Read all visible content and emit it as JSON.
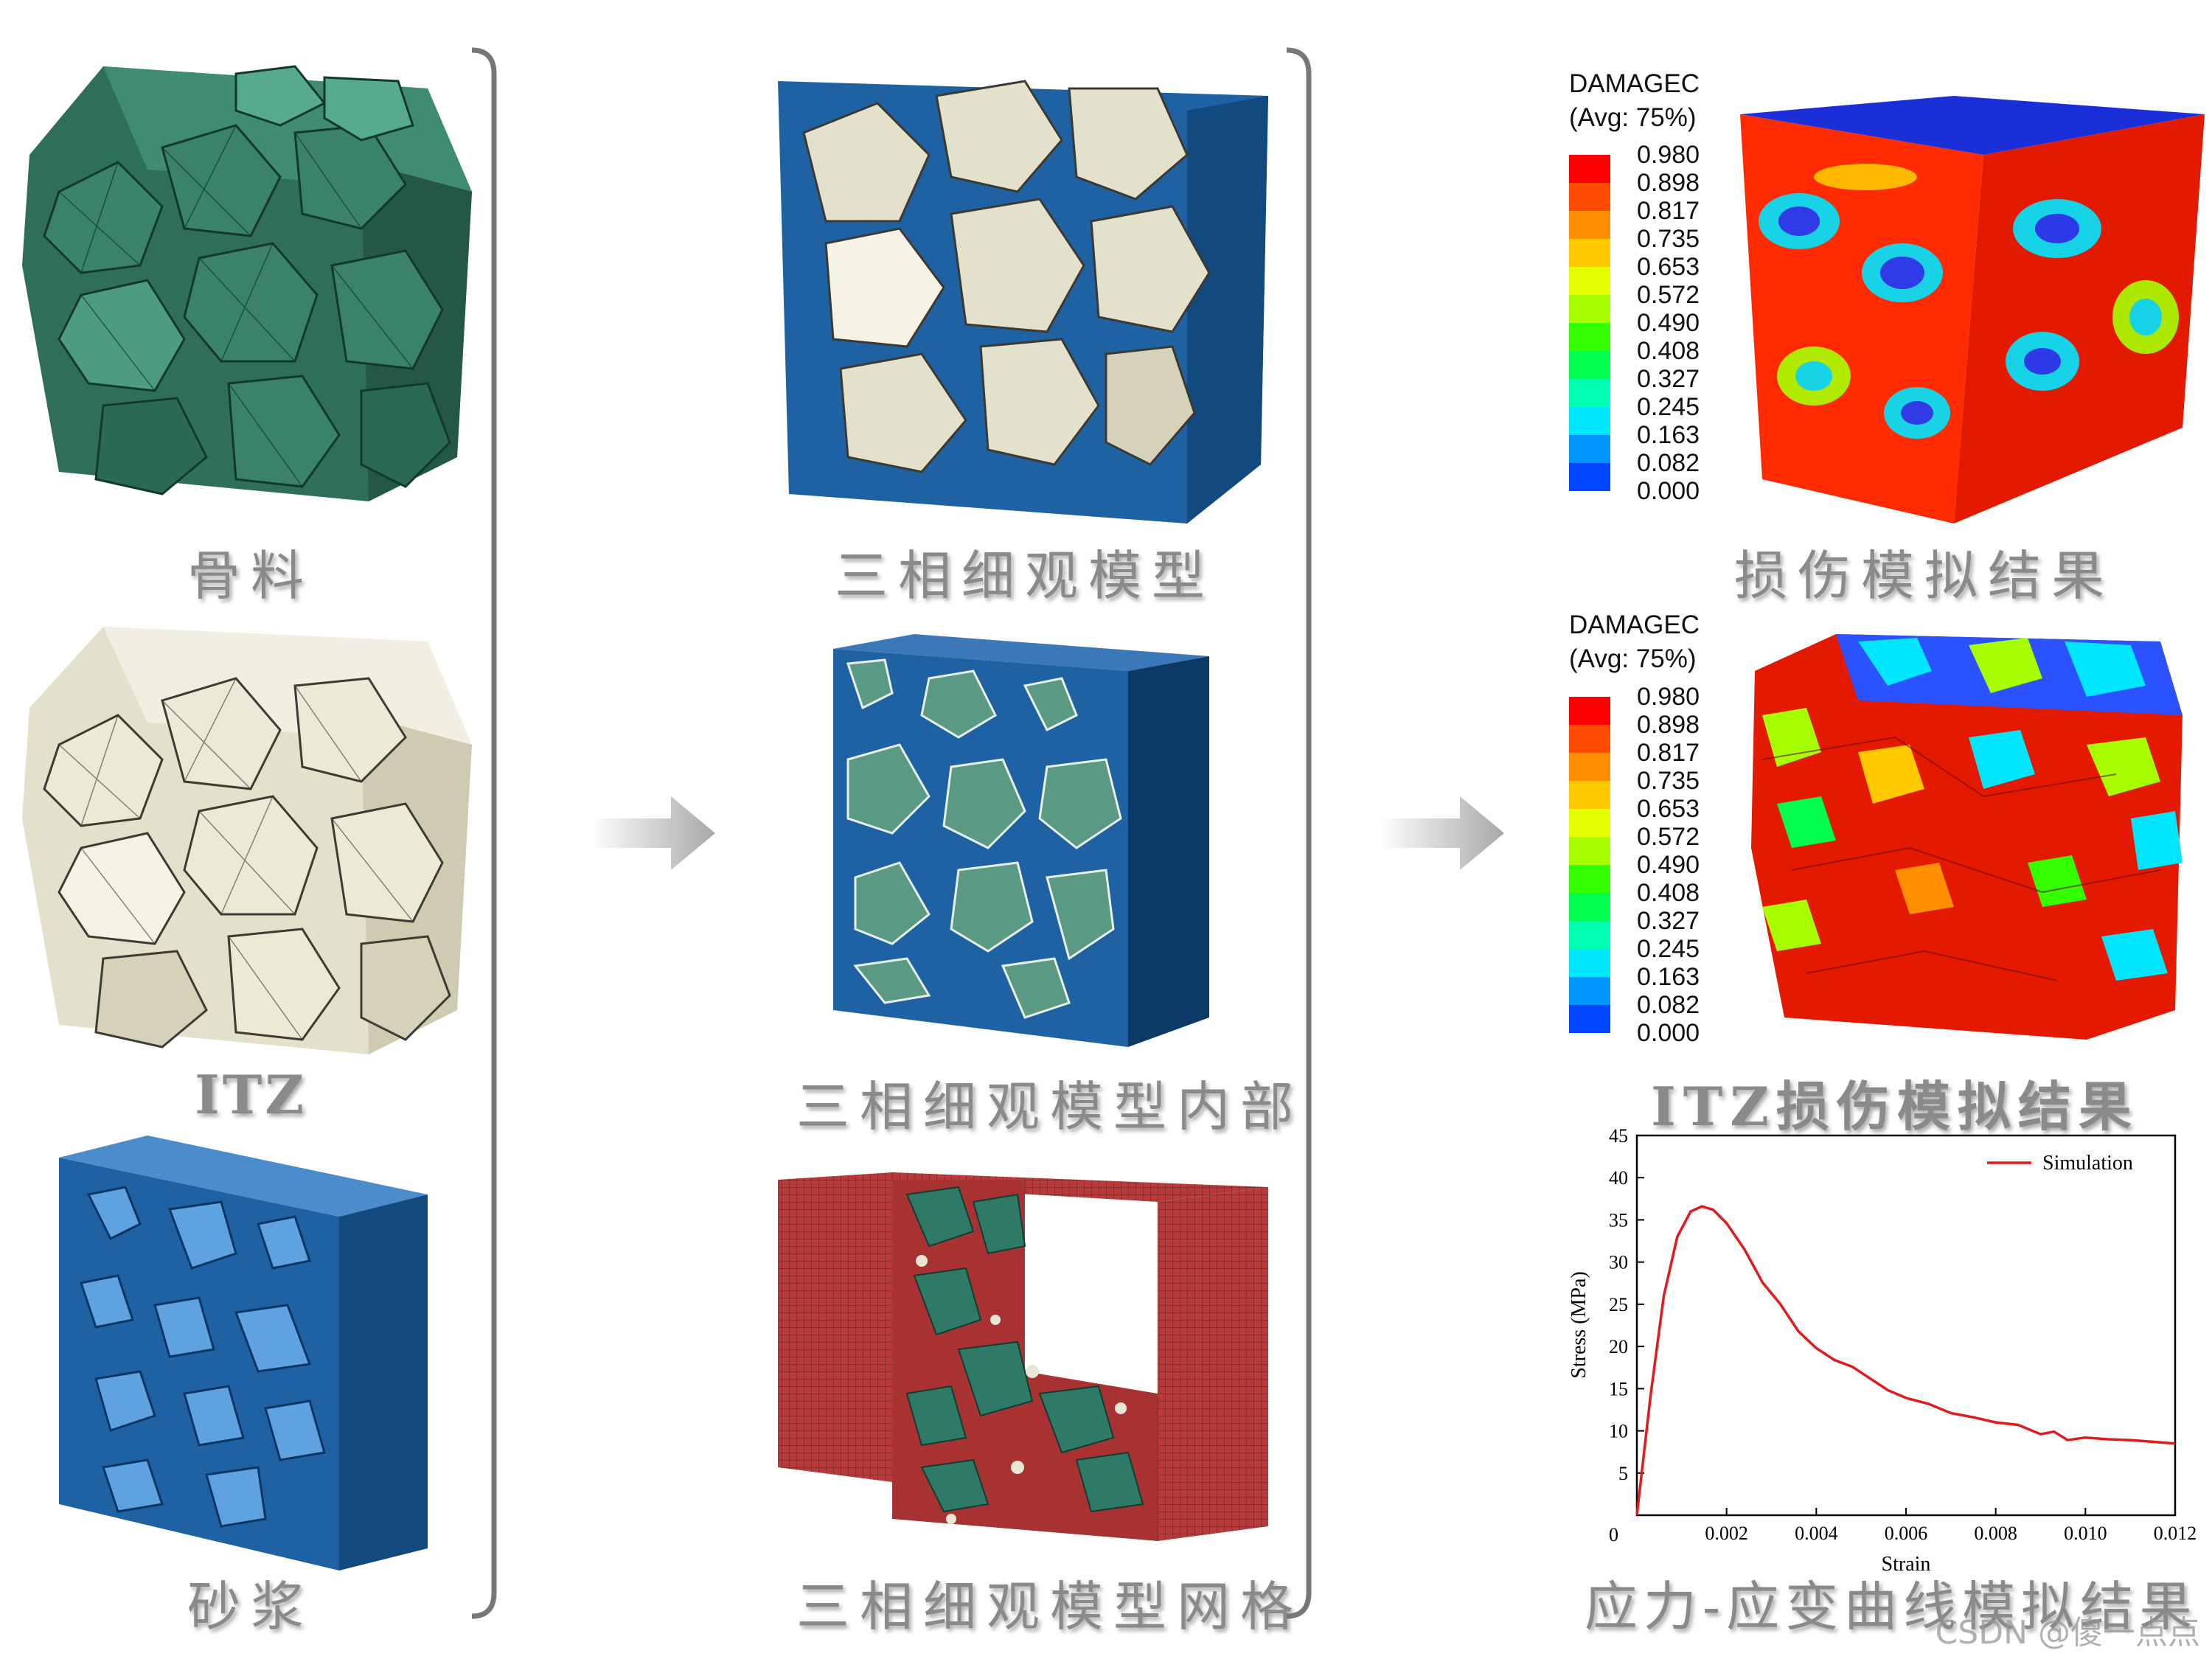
{
  "captions": {
    "aggregate": "骨料",
    "itz": "ITZ",
    "mortar": "砂浆",
    "three_phase": "三相细观模型",
    "three_phase_interior": "三相细观模型内部",
    "three_phase_mesh": "三相细观模型网格",
    "damage_result": "损伤模拟结果",
    "itz_damage_result": "ITZ损伤模拟结果",
    "stress_strain_result": "应力-应变曲线模拟结果"
  },
  "legends": {
    "title": "DAMAGEC",
    "subtitle": "(Avg: 75%)",
    "values": [
      "0.980",
      "0.898",
      "0.817",
      "0.735",
      "0.653",
      "0.572",
      "0.490",
      "0.408",
      "0.327",
      "0.245",
      "0.163",
      "0.082",
      "0.000"
    ],
    "colors": [
      "#ff0000",
      "#ff4a00",
      "#ff8f00",
      "#ffc800",
      "#e6ff00",
      "#a8ff00",
      "#33ff00",
      "#00ff4c",
      "#00ffb0",
      "#00e6ff",
      "#0096ff",
      "#0045ff",
      "#0000ff"
    ]
  },
  "colors": {
    "aggregate": "#2f6e58",
    "itz": "#e3e0cc",
    "mortar": "#1f62a3",
    "mesh": "#b83a3a",
    "arrow": "#b8b8b8"
  },
  "chart_data": {
    "type": "line",
    "xlabel": "Strain",
    "ylabel": "Stress (MPa)",
    "xlim": [
      0,
      0.012
    ],
    "ylim": [
      0,
      45
    ],
    "x_ticks": [
      "0",
      "0.002",
      "0.004",
      "0.006",
      "0.008",
      "0.010",
      "0.012"
    ],
    "y_ticks": [
      "5",
      "10",
      "15",
      "20",
      "25",
      "30",
      "35",
      "40",
      "45"
    ],
    "origin_label": "0",
    "series": [
      {
        "name": "Simulation",
        "color": "#e31a1c",
        "x": [
          0,
          0.0003,
          0.0006,
          0.0009,
          0.0012,
          0.00145,
          0.0017,
          0.002,
          0.0024,
          0.0028,
          0.0032,
          0.0036,
          0.004,
          0.0044,
          0.0048,
          0.0052,
          0.0056,
          0.006,
          0.0065,
          0.007,
          0.0075,
          0.008,
          0.0085,
          0.009,
          0.0093,
          0.0096,
          0.01,
          0.0105,
          0.011,
          0.0115,
          0.012
        ],
        "y": [
          0,
          14,
          26,
          33,
          36,
          36.6,
          36.2,
          34.6,
          31.5,
          27.6,
          25.0,
          21.8,
          19.8,
          18.4,
          17.6,
          16.2,
          14.8,
          13.9,
          13.2,
          12.1,
          11.6,
          11.0,
          10.7,
          9.6,
          9.9,
          8.9,
          9.2,
          9.0,
          8.9,
          8.7,
          8.5
        ]
      }
    ]
  },
  "watermark": "CSDN @傻一点点"
}
